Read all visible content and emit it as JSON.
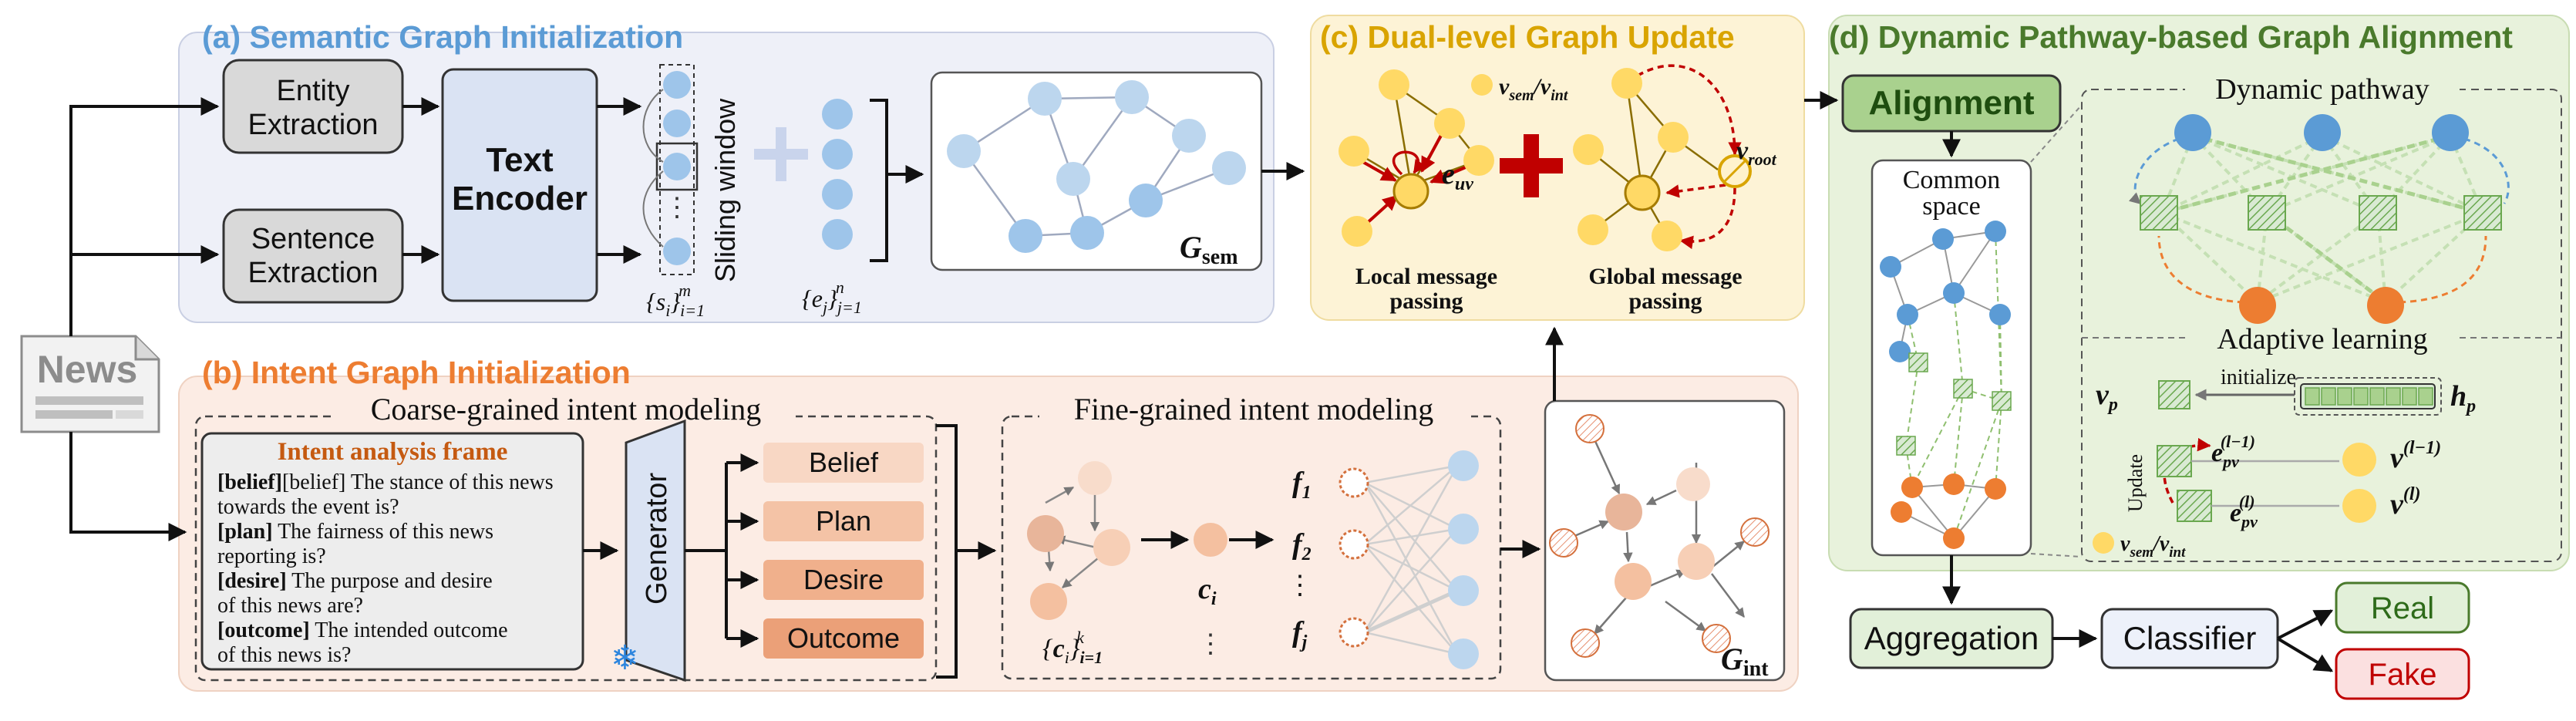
{
  "panels": {
    "a_title": "(a) Semantic Graph Initialization",
    "b_title": "(b) Intent Graph Initialization",
    "c_title": "(c) Dual-level Graph Update",
    "d_title": "(d) Dynamic Pathway-based Graph Alignment"
  },
  "news_label": "News",
  "semantic": {
    "entity_line1": "Entity",
    "entity_line2": "Extraction",
    "sentence_line1": "Sentence",
    "sentence_line2": "Extraction",
    "encoder_line1": "Text",
    "encoder_line2": "Encoder",
    "sliding_window": "Sliding window",
    "s_set": "{si}i=1m",
    "e_set": "{ej}j=1n",
    "g_sem": "Gsem"
  },
  "intent": {
    "coarse_title": "Coarse-grained intent modeling",
    "fine_title": "Fine-grained intent modeling",
    "frame_title": "Intent analysis frame",
    "frame_lines": [
      "[belief] The stance of this news",
      "towards the event is?",
      "[plan] The fairness of this news",
      "reporting is?",
      "[desire] The purpose and desire",
      "of this news are?",
      "[outcome] The intended outcome",
      "of this news is?"
    ],
    "generator": "Generator",
    "outputs": [
      "Belief",
      "Plan",
      "Desire",
      "Outcome"
    ],
    "c_set": "{ci}i=1k",
    "c_i": "ci",
    "f_labels": [
      "f1",
      "f2",
      "fj"
    ],
    "g_int": "Gint"
  },
  "update": {
    "legend": "vsem/vint",
    "e_uv": "euv",
    "v_root": "vroot",
    "local_line1": "Local message",
    "local_line2": "passing",
    "global_line1": "Global message",
    "global_line2": "passing"
  },
  "alignment": {
    "alignment": "Alignment",
    "common_line1": "Common",
    "common_line2": "space",
    "dynamic_pathway": "Dynamic pathway",
    "adaptive_learning": "Adaptive learning",
    "initialize": "initialize",
    "update": "Update",
    "v_p": "vp",
    "h_p": "hp",
    "e_pv_prev": "epv(l-1)",
    "e_pv": "epv(l)",
    "v_prev": "v(l-1)",
    "v_cur": "v(l)",
    "legend": "vsem/vint",
    "aggregation": "Aggregation",
    "classifier": "Classifier",
    "real": "Real",
    "fake": "Fake"
  },
  "colors": {
    "panel_a": "#eef0f8",
    "panel_b": "#fcece4",
    "panel_c": "#fdf3d6",
    "panel_d": "#e8f2dc",
    "blue_node": "#9ec5ea",
    "blue_title": "#5b9bd5",
    "orange_title": "#ed7d31",
    "yellow_node": "#ffd966",
    "green_title": "#4a7a2c",
    "red": "#c00000"
  }
}
